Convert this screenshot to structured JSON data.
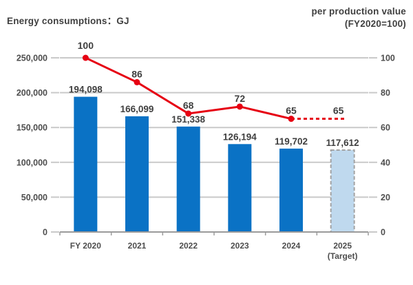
{
  "header": {
    "left_title": "Energy consumptions：GJ",
    "right_title_line1": "per production value",
    "right_title_line2": "(FY2020=100)"
  },
  "chart_data": {
    "type": "bar+line combo",
    "categories": [
      [
        "FY 2020"
      ],
      [
        "2021"
      ],
      [
        "2022"
      ],
      [
        "2023"
      ],
      [
        "2024"
      ],
      [
        "2025",
        "(Target)"
      ]
    ],
    "bars": {
      "name": "Energy consumptions (GJ)",
      "values": [
        194098,
        166099,
        151338,
        126194,
        119702,
        117612
      ],
      "labels": [
        "194,098",
        "166,099",
        "151,338",
        "126,194",
        "119,702",
        "117,612"
      ],
      "target_index": 5
    },
    "line": {
      "name": "per production value (FY2020=100)",
      "values": [
        100,
        86,
        68,
        72,
        65
      ],
      "labels": [
        "100",
        "86",
        "68",
        "72",
        "65"
      ],
      "target": {
        "value": 65,
        "label": "65"
      }
    },
    "left_axis": {
      "tick_labels": [
        "0",
        "50,000",
        "100,000",
        "150,000",
        "200,000",
        "250,000"
      ],
      "tick_values": [
        0,
        50000,
        100000,
        150000,
        200000,
        250000
      ],
      "max": 250000
    },
    "right_axis": {
      "tick_labels": [
        "0",
        "20",
        "40",
        "60",
        "80",
        "100"
      ],
      "tick_values": [
        0,
        20,
        40,
        60,
        80,
        100
      ],
      "max": 100
    },
    "grid": true,
    "legend": "none",
    "colors": {
      "bar": "#0a72c5",
      "target_bar_fill": "#bfd9ee",
      "target_bar_border": "#a3a3a3",
      "line": "#e60012",
      "grid": "#c9c9c9",
      "axis": "#9a9a9a",
      "value_text": "#3f3f3f",
      "tick_text": "#4d4d4d"
    }
  }
}
